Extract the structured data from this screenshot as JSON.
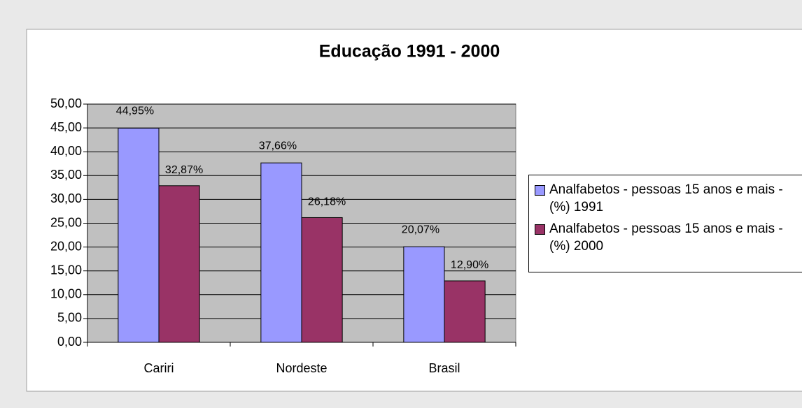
{
  "chart_data": {
    "type": "bar",
    "title": "Educação 1991 - 2000",
    "categories": [
      "Cariri",
      "Nordeste",
      "Brasil"
    ],
    "series": [
      {
        "name": "Analfabetos - pessoas 15 anos e mais - (%) 1991",
        "color": "#9999ff",
        "values": [
          44.95,
          37.66,
          20.07
        ],
        "value_labels": [
          "44,95%",
          "37,66%",
          "20,07%"
        ]
      },
      {
        "name": "Analfabetos - pessoas 15 anos e mais - (%) 2000",
        "color": "#993366",
        "values": [
          32.87,
          26.18,
          12.9
        ],
        "value_labels": [
          "32,87%",
          "26,18%",
          "12,90%"
        ]
      }
    ],
    "ylim": [
      0,
      50
    ],
    "yticks": [
      {
        "value": 0,
        "label": "0,00"
      },
      {
        "value": 5,
        "label": "5,00"
      },
      {
        "value": 10,
        "label": "10,00"
      },
      {
        "value": 15,
        "label": "15,00"
      },
      {
        "value": 20,
        "label": "20,00"
      },
      {
        "value": 25,
        "label": "25,00"
      },
      {
        "value": 30,
        "label": "30,00"
      },
      {
        "value": 35,
        "label": "35,00"
      },
      {
        "value": 40,
        "label": "40,00"
      },
      {
        "value": 45,
        "label": "45,00"
      },
      {
        "value": 50,
        "label": "50,00"
      }
    ],
    "grid": true,
    "legend": "right"
  }
}
